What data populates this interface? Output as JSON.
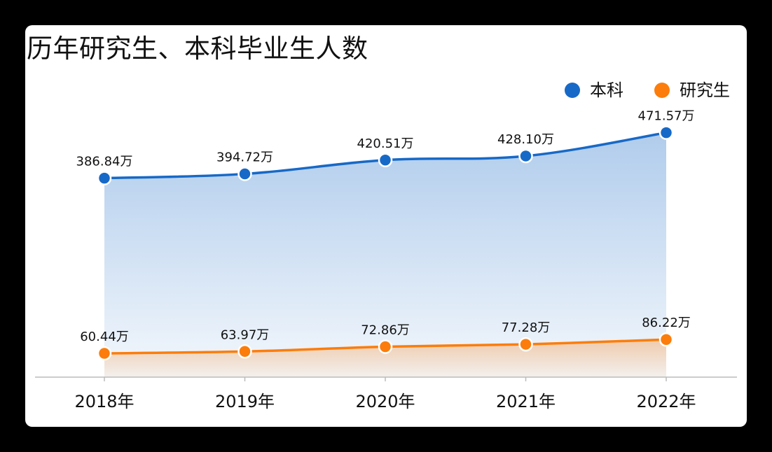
{
  "title": "历年研究生、本科毕业生人数",
  "colors": {
    "undergrad": "#1769c7",
    "postgrad": "#fc7d0b",
    "axis": "#bbbbbb"
  },
  "chart_data": {
    "type": "area",
    "title": "历年研究生、本科毕业生人数",
    "categories": [
      "2018年",
      "2019年",
      "2020年",
      "2021年",
      "2022年"
    ],
    "series": [
      {
        "name": "本科",
        "values": [
          386.84,
          394.72,
          420.51,
          428.1,
          471.57
        ],
        "labels": [
          "386.84万",
          "394.72万",
          "420.51万",
          "428.10万",
          "471.57万"
        ]
      },
      {
        "name": "研究生",
        "values": [
          60.44,
          63.97,
          72.86,
          77.28,
          86.22
        ],
        "labels": [
          "60.44万",
          "63.97万",
          "72.86万",
          "77.28万",
          "86.22万"
        ]
      }
    ],
    "ylim": [
      0,
      520
    ],
    "legend": "top-right",
    "grid": false
  }
}
